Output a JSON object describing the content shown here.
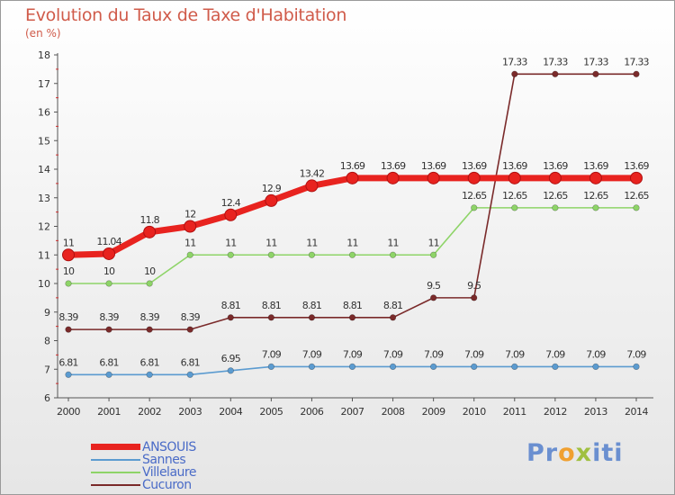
{
  "title": "Evolution du Taux de Taxe d'Habitation",
  "subtitle": "(en %)",
  "logo": {
    "p1": "Pr",
    "p2": "o",
    "p3": "x",
    "p4": "iti"
  },
  "chart_data": {
    "type": "line",
    "title": "Evolution du Taux de Taxe d'Habitation",
    "ylabel": "(en %)",
    "xlabel": "",
    "ylim": [
      6,
      18
    ],
    "yticks": [
      "6",
      "7",
      "8",
      "9",
      "10",
      "11",
      "12",
      "13",
      "14",
      "15",
      "16",
      "17",
      "18"
    ],
    "categories": [
      "2000",
      "2001",
      "2002",
      "2003",
      "2004",
      "2005",
      "2006",
      "2007",
      "2008",
      "2009",
      "2010",
      "2011",
      "2012",
      "2013",
      "2014"
    ],
    "series": [
      {
        "name": "ANSOUIS",
        "color": "#e8231f",
        "values": [
          11,
          11.04,
          11.8,
          12,
          12.4,
          12.9,
          13.42,
          13.69,
          13.69,
          13.69,
          13.69,
          13.69,
          13.69,
          13.69,
          13.69
        ],
        "labels": [
          "11",
          "11.04",
          "11.8",
          "12",
          "12.4",
          "12.9",
          "13.42",
          "13.69",
          "13.69",
          "13.69",
          "13.69",
          "13.69",
          "13.69",
          "13.69",
          "13.69"
        ]
      },
      {
        "name": "Sannes",
        "color": "#5b9bd0",
        "values": [
          6.81,
          6.81,
          6.81,
          6.81,
          6.95,
          7.09,
          7.09,
          7.09,
          7.09,
          7.09,
          7.09,
          7.09,
          7.09,
          7.09,
          7.09
        ],
        "labels": [
          "6.81",
          "6.81",
          "6.81",
          "6.81",
          "6.95",
          "7.09",
          "7.09",
          "7.09",
          "7.09",
          "7.09",
          "7.09",
          "7.09",
          "7.09",
          "7.09",
          "7.09"
        ]
      },
      {
        "name": "Villelaure",
        "color": "#8ed468",
        "values": [
          10,
          10,
          10,
          11,
          11,
          11,
          11,
          11,
          11,
          11,
          12.65,
          12.65,
          12.65,
          12.65,
          12.65
        ],
        "labels": [
          "10",
          "10",
          "10",
          "11",
          "11",
          "11",
          "11",
          "11",
          "11",
          "11",
          "12.65",
          "12.65",
          "12.65",
          "12.65",
          "12.65"
        ]
      },
      {
        "name": "Cucuron",
        "color": "#7a2a2a",
        "values": [
          8.39,
          8.39,
          8.39,
          8.39,
          8.81,
          8.81,
          8.81,
          8.81,
          8.81,
          9.5,
          9.5,
          17.33,
          17.33,
          17.33,
          17.33
        ],
        "labels": [
          "8.39",
          "8.39",
          "8.39",
          "8.39",
          "8.81",
          "8.81",
          "8.81",
          "8.81",
          "8.81",
          "9.5",
          "9.5",
          "17.33",
          "17.33",
          "17.33",
          "17.33"
        ]
      }
    ],
    "legend": "bottom-left",
    "grid": false
  }
}
